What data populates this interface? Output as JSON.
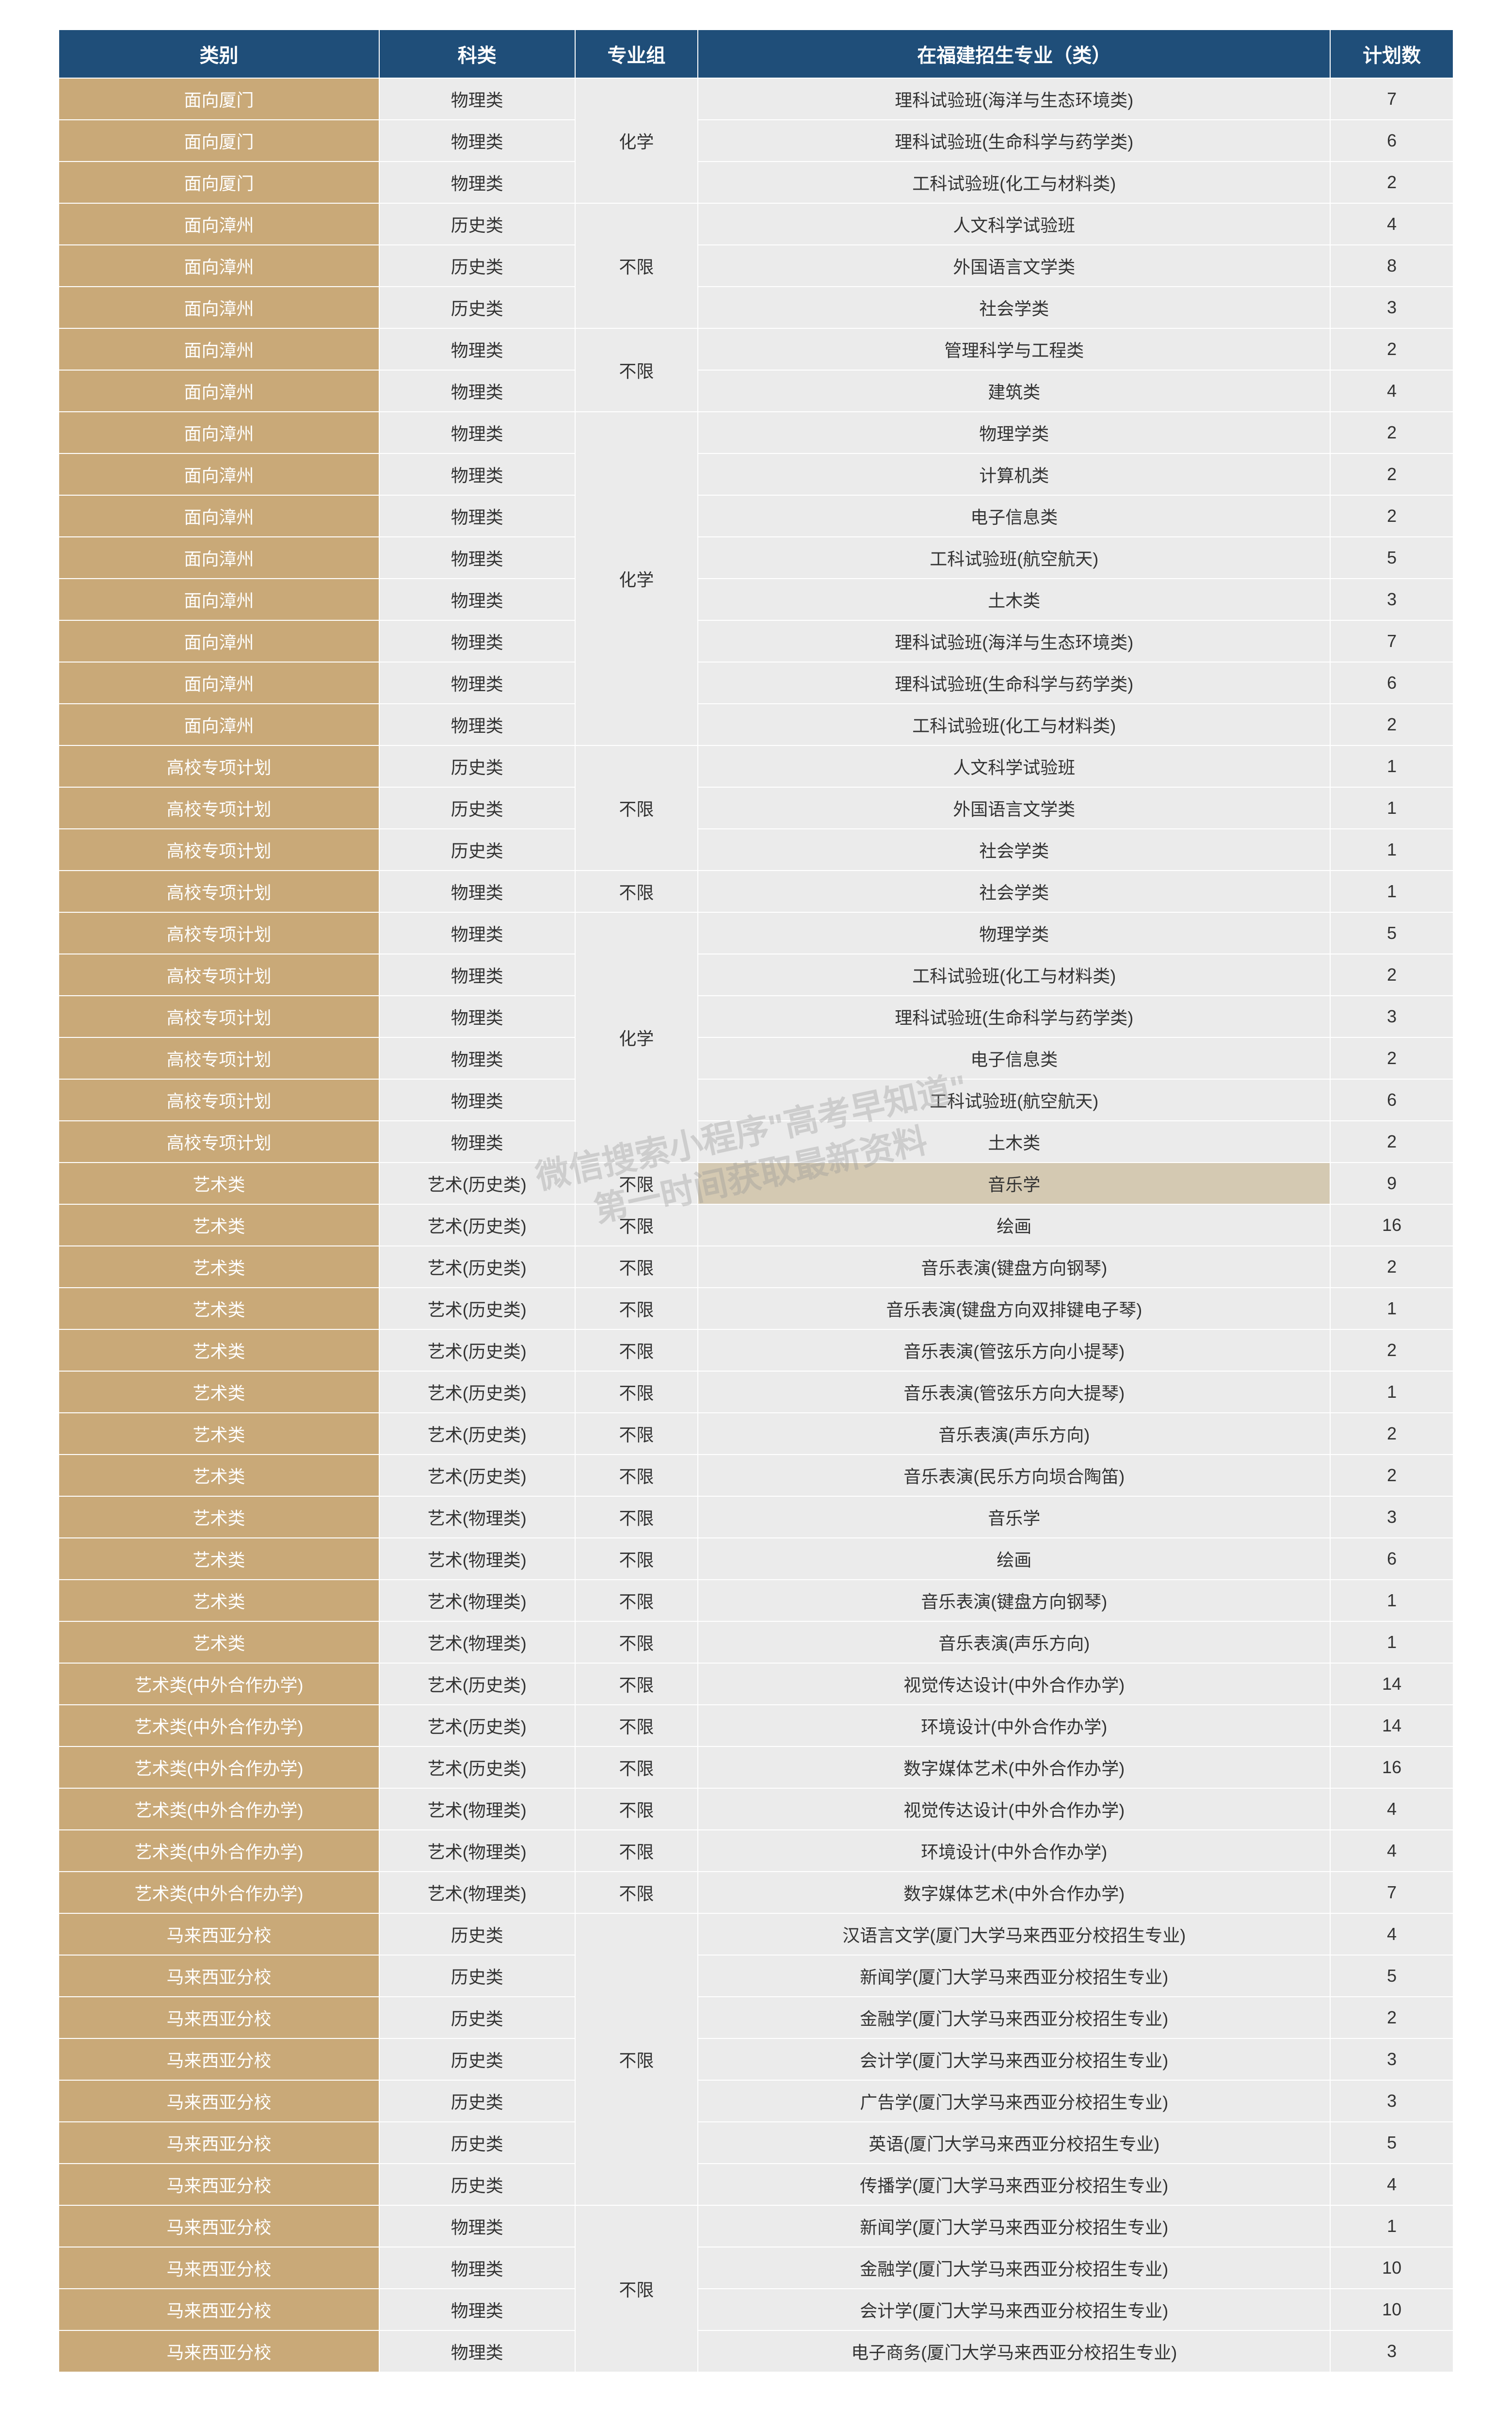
{
  "headers": {
    "category": "类别",
    "subject": "科类",
    "group": "专业组",
    "major": "在福建招生专业（类）",
    "plan": "计划数"
  },
  "colors": {
    "header_bg": "#1f4e79",
    "header_fg": "#ffffff",
    "category_bg": "#c9a978",
    "category_fg": "#ffffff",
    "cell_bg": "#ebebeb",
    "cell_fg": "#333333",
    "highlight_bg": "#d4c9b2",
    "border": "#ffffff"
  },
  "typography": {
    "header_fontsize": 40,
    "cell_fontsize": 36,
    "font_family": "Microsoft YaHei"
  },
  "watermark": {
    "line1": "微信搜索小程序\"高考早知道\"",
    "line2": "第一时间获取最新资料"
  },
  "groups": {
    "chem": "化学",
    "none": "不限"
  },
  "subjects": {
    "phys": "物理类",
    "hist": "历史类",
    "art_hist": "艺术(历史类)",
    "art_phys": "艺术(物理类)"
  },
  "categories": {
    "xiamen": "面向厦门",
    "zhangzhou": "面向漳州",
    "gaoxiao": "高校专项计划",
    "art": "艺术类",
    "art_coop": "艺术类(中外合作办学)",
    "malaysia": "马来西亚分校"
  },
  "rows": [
    {
      "cat": "xiamen",
      "sub": "phys",
      "grp": "chem",
      "grp_span": 3,
      "maj": "理科试验班(海洋与生态环境类)",
      "num": 7
    },
    {
      "cat": "xiamen",
      "sub": "phys",
      "maj": "理科试验班(生命科学与药学类)",
      "num": 6
    },
    {
      "cat": "xiamen",
      "sub": "phys",
      "maj": "工科试验班(化工与材料类)",
      "num": 2
    },
    {
      "cat": "zhangzhou",
      "sub": "hist",
      "grp": "none",
      "grp_span": 3,
      "maj": "人文科学试验班",
      "num": 4
    },
    {
      "cat": "zhangzhou",
      "sub": "hist",
      "maj": "外国语言文学类",
      "num": 8
    },
    {
      "cat": "zhangzhou",
      "sub": "hist",
      "maj": "社会学类",
      "num": 3
    },
    {
      "cat": "zhangzhou",
      "sub": "phys",
      "grp": "none",
      "grp_span": 2,
      "maj": "管理科学与工程类",
      "num": 2
    },
    {
      "cat": "zhangzhou",
      "sub": "phys",
      "maj": "建筑类",
      "num": 4
    },
    {
      "cat": "zhangzhou",
      "sub": "phys",
      "grp": "chem",
      "grp_span": 8,
      "maj": "物理学类",
      "num": 2
    },
    {
      "cat": "zhangzhou",
      "sub": "phys",
      "maj": "计算机类",
      "num": 2
    },
    {
      "cat": "zhangzhou",
      "sub": "phys",
      "maj": "电子信息类",
      "num": 2
    },
    {
      "cat": "zhangzhou",
      "sub": "phys",
      "maj": "工科试验班(航空航天)",
      "num": 5
    },
    {
      "cat": "zhangzhou",
      "sub": "phys",
      "maj": "土木类",
      "num": 3
    },
    {
      "cat": "zhangzhou",
      "sub": "phys",
      "maj": "理科试验班(海洋与生态环境类)",
      "num": 7
    },
    {
      "cat": "zhangzhou",
      "sub": "phys",
      "maj": "理科试验班(生命科学与药学类)",
      "num": 6
    },
    {
      "cat": "zhangzhou",
      "sub": "phys",
      "maj": "工科试验班(化工与材料类)",
      "num": 2
    },
    {
      "cat": "gaoxiao",
      "sub": "hist",
      "grp": "none",
      "grp_span": 3,
      "maj": "人文科学试验班",
      "num": 1
    },
    {
      "cat": "gaoxiao",
      "sub": "hist",
      "maj": "外国语言文学类",
      "num": 1
    },
    {
      "cat": "gaoxiao",
      "sub": "hist",
      "maj": "社会学类",
      "num": 1
    },
    {
      "cat": "gaoxiao",
      "sub": "phys",
      "grp": "none",
      "grp_span": 1,
      "maj": "社会学类",
      "num": 1
    },
    {
      "cat": "gaoxiao",
      "sub": "phys",
      "grp": "chem",
      "grp_span": 6,
      "maj": "物理学类",
      "num": 5
    },
    {
      "cat": "gaoxiao",
      "sub": "phys",
      "maj": "工科试验班(化工与材料类)",
      "num": 2
    },
    {
      "cat": "gaoxiao",
      "sub": "phys",
      "maj": "理科试验班(生命科学与药学类)",
      "num": 3
    },
    {
      "cat": "gaoxiao",
      "sub": "phys",
      "maj": "电子信息类",
      "num": 2
    },
    {
      "cat": "gaoxiao",
      "sub": "phys",
      "maj": "工科试验班(航空航天)",
      "num": 6
    },
    {
      "cat": "gaoxiao",
      "sub": "phys",
      "maj": "土木类",
      "num": 2
    },
    {
      "cat": "art",
      "sub": "art_hist",
      "grp": "none",
      "grp_span": 1,
      "maj": "音乐学",
      "num": 9,
      "highlight": true
    },
    {
      "cat": "art",
      "sub": "art_hist",
      "grp": "none",
      "grp_span": 1,
      "maj": "绘画",
      "num": 16
    },
    {
      "cat": "art",
      "sub": "art_hist",
      "grp": "none",
      "grp_span": 1,
      "maj": "音乐表演(键盘方向钢琴)",
      "num": 2
    },
    {
      "cat": "art",
      "sub": "art_hist",
      "grp": "none",
      "grp_span": 1,
      "maj": "音乐表演(键盘方向双排键电子琴)",
      "num": 1
    },
    {
      "cat": "art",
      "sub": "art_hist",
      "grp": "none",
      "grp_span": 1,
      "maj": "音乐表演(管弦乐方向小提琴)",
      "num": 2
    },
    {
      "cat": "art",
      "sub": "art_hist",
      "grp": "none",
      "grp_span": 1,
      "maj": "音乐表演(管弦乐方向大提琴)",
      "num": 1
    },
    {
      "cat": "art",
      "sub": "art_hist",
      "grp": "none",
      "grp_span": 1,
      "maj": "音乐表演(声乐方向)",
      "num": 2
    },
    {
      "cat": "art",
      "sub": "art_hist",
      "grp": "none",
      "grp_span": 1,
      "maj": "音乐表演(民乐方向埙合陶笛)",
      "num": 2
    },
    {
      "cat": "art",
      "sub": "art_phys",
      "grp": "none",
      "grp_span": 1,
      "maj": "音乐学",
      "num": 3
    },
    {
      "cat": "art",
      "sub": "art_phys",
      "grp": "none",
      "grp_span": 1,
      "maj": "绘画",
      "num": 6
    },
    {
      "cat": "art",
      "sub": "art_phys",
      "grp": "none",
      "grp_span": 1,
      "maj": "音乐表演(键盘方向钢琴)",
      "num": 1
    },
    {
      "cat": "art",
      "sub": "art_phys",
      "grp": "none",
      "grp_span": 1,
      "maj": "音乐表演(声乐方向)",
      "num": 1
    },
    {
      "cat": "art_coop",
      "sub": "art_hist",
      "grp": "none",
      "grp_span": 1,
      "maj": "视觉传达设计(中外合作办学)",
      "num": 14
    },
    {
      "cat": "art_coop",
      "sub": "art_hist",
      "grp": "none",
      "grp_span": 1,
      "maj": "环境设计(中外合作办学)",
      "num": 14
    },
    {
      "cat": "art_coop",
      "sub": "art_hist",
      "grp": "none",
      "grp_span": 1,
      "maj": "数字媒体艺术(中外合作办学)",
      "num": 16
    },
    {
      "cat": "art_coop",
      "sub": "art_phys",
      "grp": "none",
      "grp_span": 1,
      "maj": "视觉传达设计(中外合作办学)",
      "num": 4
    },
    {
      "cat": "art_coop",
      "sub": "art_phys",
      "grp": "none",
      "grp_span": 1,
      "maj": "环境设计(中外合作办学)",
      "num": 4
    },
    {
      "cat": "art_coop",
      "sub": "art_phys",
      "grp": "none",
      "grp_span": 1,
      "maj": "数字媒体艺术(中外合作办学)",
      "num": 7
    },
    {
      "cat": "malaysia",
      "sub": "hist",
      "grp": "none",
      "grp_span": 7,
      "maj": "汉语言文学(厦门大学马来西亚分校招生专业)",
      "num": 4
    },
    {
      "cat": "malaysia",
      "sub": "hist",
      "maj": "新闻学(厦门大学马来西亚分校招生专业)",
      "num": 5
    },
    {
      "cat": "malaysia",
      "sub": "hist",
      "maj": "金融学(厦门大学马来西亚分校招生专业)",
      "num": 2
    },
    {
      "cat": "malaysia",
      "sub": "hist",
      "maj": "会计学(厦门大学马来西亚分校招生专业)",
      "num": 3
    },
    {
      "cat": "malaysia",
      "sub": "hist",
      "maj": "广告学(厦门大学马来西亚分校招生专业)",
      "num": 3
    },
    {
      "cat": "malaysia",
      "sub": "hist",
      "maj": "英语(厦门大学马来西亚分校招生专业)",
      "num": 5
    },
    {
      "cat": "malaysia",
      "sub": "hist",
      "maj": "传播学(厦门大学马来西亚分校招生专业)",
      "num": 4
    },
    {
      "cat": "malaysia",
      "sub": "phys",
      "grp": "none",
      "grp_span": 4,
      "maj": "新闻学(厦门大学马来西亚分校招生专业)",
      "num": 1
    },
    {
      "cat": "malaysia",
      "sub": "phys",
      "maj": "金融学(厦门大学马来西亚分校招生专业)",
      "num": 10
    },
    {
      "cat": "malaysia",
      "sub": "phys",
      "maj": "会计学(厦门大学马来西亚分校招生专业)",
      "num": 10
    },
    {
      "cat": "malaysia",
      "sub": "phys",
      "maj": "电子商务(厦门大学马来西亚分校招生专业)",
      "num": 3
    }
  ]
}
